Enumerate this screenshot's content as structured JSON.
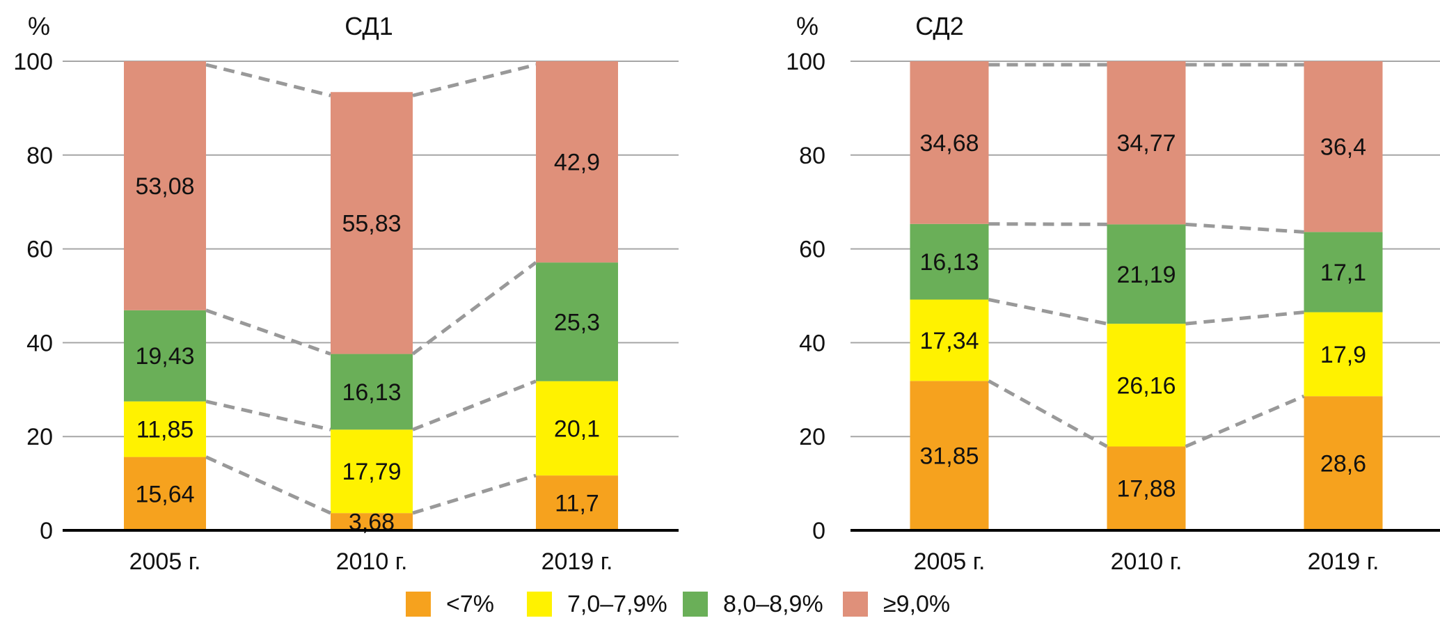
{
  "legend": [
    {
      "label": "<7%",
      "color": "#F6A21E"
    },
    {
      "label": "7,0–7,9%",
      "color": "#FFF200"
    },
    {
      "label": "8,0–8,9%",
      "color": "#6AAF58"
    },
    {
      "label": "≥9,0%",
      "color": "#DF907A"
    }
  ],
  "chart_data": [
    {
      "type": "bar",
      "stacked": true,
      "title": "СД1",
      "ylabel": "%",
      "xlabel": "",
      "ylim": [
        0,
        100
      ],
      "yticks": [
        0,
        20,
        40,
        60,
        80,
        100
      ],
      "grid": true,
      "legend_position": "bottom",
      "categories": [
        "2005 г.",
        "2010 г.",
        "2019 г."
      ],
      "series": [
        {
          "name": "<7%",
          "values": [
            15.64,
            3.68,
            11.7
          ],
          "labels": [
            "15,64",
            "3,68",
            "11,7"
          ]
        },
        {
          "name": "7,0–7,9%",
          "values": [
            11.85,
            17.79,
            20.1
          ],
          "labels": [
            "11,85",
            "17,79",
            "20,1"
          ]
        },
        {
          "name": "8,0–8,9%",
          "values": [
            19.43,
            16.13,
            25.3
          ],
          "labels": [
            "19,43",
            "16,13",
            "25,3"
          ]
        },
        {
          "name": "≥9,0%",
          "values": [
            53.08,
            55.83,
            42.9
          ],
          "labels": [
            "53,08",
            "55,83",
            "42,9"
          ]
        }
      ],
      "connector_lines": "dashed"
    },
    {
      "type": "bar",
      "stacked": true,
      "title": "СД2",
      "ylabel": "%",
      "xlabel": "",
      "ylim": [
        0,
        100
      ],
      "yticks": [
        0,
        20,
        40,
        60,
        80,
        100
      ],
      "grid": true,
      "legend_position": "bottom",
      "categories": [
        "2005 г.",
        "2010 г.",
        "2019 г."
      ],
      "series": [
        {
          "name": "<7%",
          "values": [
            31.85,
            17.88,
            28.6
          ],
          "labels": [
            "31,85",
            "17,88",
            "28,6"
          ]
        },
        {
          "name": "7,0–7,9%",
          "values": [
            17.34,
            26.16,
            17.9
          ],
          "labels": [
            "17,34",
            "26,16",
            "17,9"
          ]
        },
        {
          "name": "8,0–8,9%",
          "values": [
            16.13,
            21.19,
            17.1
          ],
          "labels": [
            "16,13",
            "21,19",
            "17,1"
          ]
        },
        {
          "name": "≥9,0%",
          "values": [
            34.68,
            34.77,
            36.4
          ],
          "labels": [
            "34,68",
            "34,77",
            "36,4"
          ]
        }
      ],
      "connector_lines": "dashed"
    }
  ]
}
